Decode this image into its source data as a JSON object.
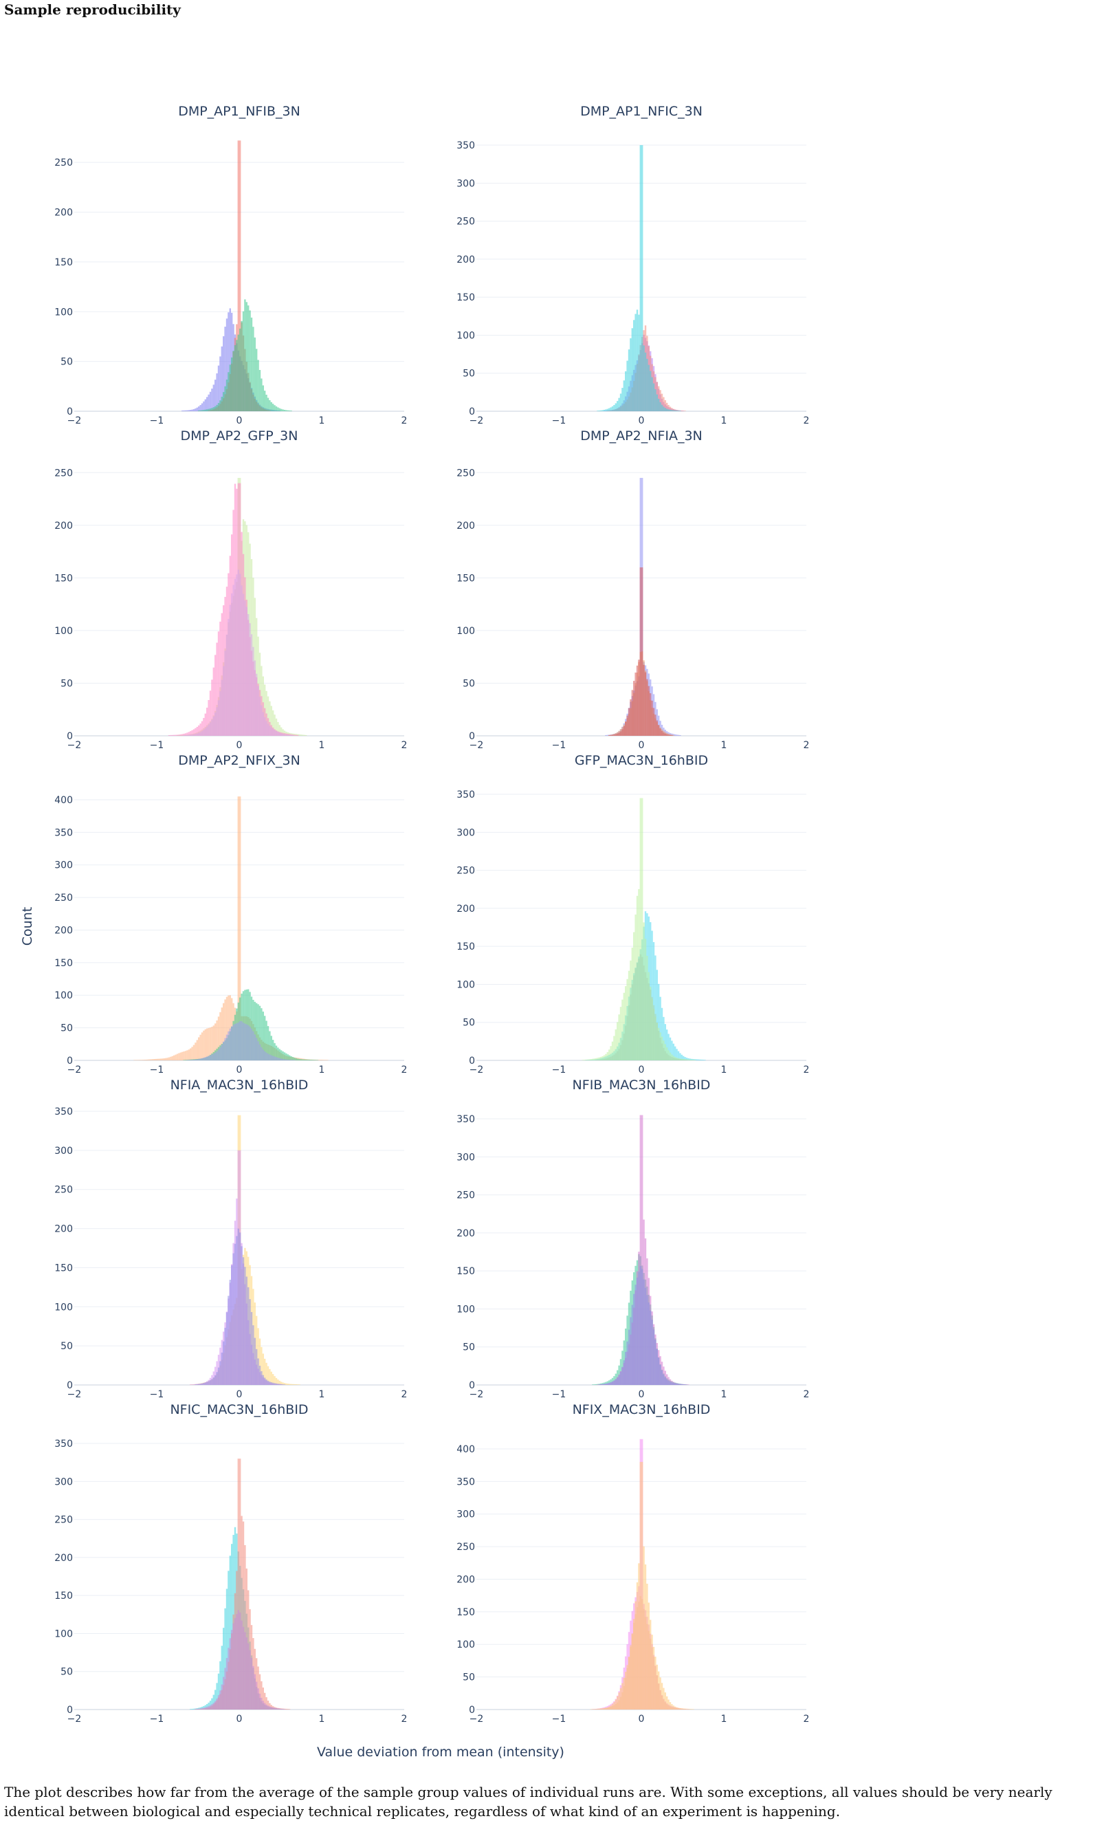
{
  "heading": "Sample reproducibility",
  "caption": "The plot describes how far from the average of the sample group values of individual runs are. With some exceptions, all values should be very nearly identical between biological and especially technical replicates, regardless of what kind of an experiment is happening.",
  "chart_data": {
    "type": "histogram",
    "xlabel": "Value deviation from mean (intensity)",
    "ylabel": "Count",
    "xlim": [
      -2,
      2
    ],
    "x_ticks": [
      -2,
      -1,
      0,
      1,
      2
    ],
    "x_tick_labels": [
      "−2",
      "−1",
      "0",
      "1",
      "2"
    ],
    "grid": true,
    "panels": [
      {
        "title": "DMP_AP1_NFIB_3N",
        "ylim": [
          0,
          275
        ],
        "y_ticks": [
          0,
          50,
          100,
          150,
          200,
          250
        ],
        "series": [
          {
            "color": "#7b7bf0",
            "center": -0.1,
            "width": 0.15,
            "peak": 100,
            "spike": null
          },
          {
            "color": "#f0756a",
            "center": 0.0,
            "width": 0.1,
            "peak": 95,
            "spike": 272
          },
          {
            "color": "#3cc98e",
            "center": 0.07,
            "width": 0.14,
            "peak": 120,
            "spike": null
          }
        ]
      },
      {
        "title": "DMP_AP1_NFIC_3N",
        "ylim": [
          0,
          360
        ],
        "y_ticks": [
          0,
          50,
          100,
          150,
          200,
          250,
          300,
          350
        ],
        "series": [
          {
            "color": "#b57cf2",
            "center": 0.03,
            "width": 0.12,
            "peak": 110,
            "spike": null
          },
          {
            "color": "#f38c7e",
            "center": 0.05,
            "width": 0.12,
            "peak": 105,
            "spike": null
          },
          {
            "color": "#3ed3e0",
            "center": -0.04,
            "width": 0.12,
            "peak": 140,
            "spike": 350
          }
        ]
      },
      {
        "title": "DMP_AP2_GFP_3N",
        "ylim": [
          0,
          260
        ],
        "y_ticks": [
          0,
          50,
          100,
          150,
          200,
          250
        ],
        "series": [
          {
            "color": "#c6eaa0",
            "center": 0.05,
            "width": 0.17,
            "peak": 215,
            "spike": 245
          },
          {
            "color": "#ff85c7",
            "center": -0.05,
            "width": 0.17,
            "peak": 230,
            "spike": 240
          },
          {
            "color": "#d7a7ea",
            "center": 0.0,
            "width": 0.15,
            "peak": 180,
            "spike": null
          }
        ]
      },
      {
        "title": "DMP_AP2_NFIA_3N",
        "ylim": [
          0,
          260
        ],
        "y_ticks": [
          0,
          50,
          100,
          150,
          200,
          250
        ],
        "series": [
          {
            "color": "#8f8ff2",
            "center": 0.02,
            "width": 0.12,
            "peak": 80,
            "spike": 245
          },
          {
            "color": "#e9a06e",
            "center": 0.0,
            "width": 0.11,
            "peak": 75,
            "spike": null
          },
          {
            "color": "#d75a5a",
            "center": 0.0,
            "width": 0.1,
            "peak": 90,
            "spike": 160
          }
        ]
      },
      {
        "title": "DMP_AP2_NFIX_3N",
        "ylim": [
          0,
          420
        ],
        "y_ticks": [
          0,
          50,
          100,
          150,
          200,
          250,
          300,
          350,
          400
        ],
        "series": [
          {
            "color": "#ffb27e",
            "center": -0.1,
            "width": 0.3,
            "peak": 95,
            "spike": 405
          },
          {
            "color": "#3cc98e",
            "center": 0.12,
            "width": 0.2,
            "peak": 120,
            "spike": null
          },
          {
            "color": "#9f9fef",
            "center": 0.02,
            "width": 0.18,
            "peak": 70,
            "spike": null
          }
        ]
      },
      {
        "title": "GFP_MAC3N_16hBID",
        "ylim": [
          0,
          360
        ],
        "y_ticks": [
          0,
          50,
          100,
          150,
          200,
          250,
          300,
          350
        ],
        "series": [
          {
            "color": "#4fd8f0",
            "center": 0.05,
            "width": 0.16,
            "peak": 205,
            "spike": null
          },
          {
            "color": "#bff0a2",
            "center": -0.04,
            "width": 0.15,
            "peak": 215,
            "spike": 345
          },
          {
            "color": "#a9d7ae",
            "center": 0.0,
            "width": 0.13,
            "peak": 160,
            "spike": null
          }
        ]
      },
      {
        "title": "NFIA_MAC3N_16hBID",
        "ylim": [
          0,
          350
        ],
        "y_ticks": [
          0,
          50,
          100,
          150,
          200,
          250,
          300,
          350
        ],
        "series": [
          {
            "color": "#ffd577",
            "center": 0.06,
            "width": 0.15,
            "peak": 180,
            "spike": 345
          },
          {
            "color": "#d391f2",
            "center": -0.03,
            "width": 0.12,
            "peak": 220,
            "spike": 300
          },
          {
            "color": "#8f8ee8",
            "center": 0.0,
            "width": 0.12,
            "peak": 230,
            "spike": null
          }
        ]
      },
      {
        "title": "NFIB_MAC3N_16hBID",
        "ylim": [
          0,
          360
        ],
        "y_ticks": [
          0,
          50,
          100,
          150,
          200,
          250,
          300,
          350
        ],
        "series": [
          {
            "color": "#41c99a",
            "center": -0.02,
            "width": 0.13,
            "peak": 200,
            "spike": null
          },
          {
            "color": "#d377cf",
            "center": 0.02,
            "width": 0.12,
            "peak": 205,
            "spike": 355
          },
          {
            "color": "#8f8ee8",
            "center": 0.0,
            "width": 0.12,
            "peak": 180,
            "spike": null
          }
        ]
      },
      {
        "title": "NFIC_MAC3N_16hBID",
        "ylim": [
          0,
          360
        ],
        "y_ticks": [
          0,
          50,
          100,
          150,
          200,
          250,
          300,
          350
        ],
        "series": [
          {
            "color": "#3ed3e0",
            "center": -0.04,
            "width": 0.12,
            "peak": 270,
            "spike": null
          },
          {
            "color": "#f38c7e",
            "center": 0.04,
            "width": 0.12,
            "peak": 240,
            "spike": 330
          },
          {
            "color": "#c98ad9",
            "center": 0.0,
            "width": 0.13,
            "peak": 150,
            "spike": null
          }
        ]
      },
      {
        "title": "NFIX_MAC3N_16hBID",
        "ylim": [
          0,
          420
        ],
        "y_ticks": [
          0,
          50,
          100,
          150,
          200,
          250,
          300,
          350,
          400
        ],
        "series": [
          {
            "color": "#f38cf2",
            "center": -0.02,
            "width": 0.13,
            "peak": 220,
            "spike": 415
          },
          {
            "color": "#ffc877",
            "center": 0.01,
            "width": 0.13,
            "peak": 245,
            "spike": 380
          },
          {
            "color": "#f7c08c",
            "center": 0.0,
            "width": 0.12,
            "peak": 200,
            "spike": null
          }
        ]
      }
    ]
  }
}
